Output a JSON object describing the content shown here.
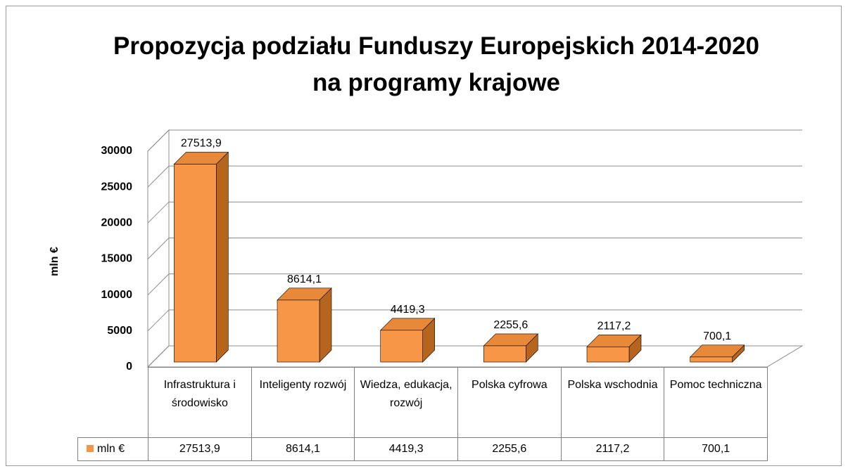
{
  "chart_data": {
    "type": "bar3d",
    "title": "Propozycja podziału Funduszy Europejskich 2014-2020 na programy krajowe",
    "y_axis_label": "mln €",
    "categories": [
      "Infrastruktura i środowisko",
      "Inteligenty rozwój",
      "Wiedza, edukacja, rozwój",
      "Polska cyfrowa",
      "Polska wschodnia",
      "Pomoc techniczna"
    ],
    "series": [
      {
        "name": "mln €",
        "color": "#f79646",
        "values": [
          27513.9,
          8614.1,
          4419.3,
          2255.6,
          2117.2,
          700.1
        ],
        "value_labels": [
          "27513,9",
          "8614,1",
          "4419,3",
          "2255,6",
          "2117,2",
          "700,1"
        ]
      }
    ],
    "ylim": [
      0,
      30000
    ],
    "yticks": [
      0,
      5000,
      10000,
      15000,
      20000,
      25000,
      30000
    ],
    "grid": true,
    "data_table": true
  }
}
